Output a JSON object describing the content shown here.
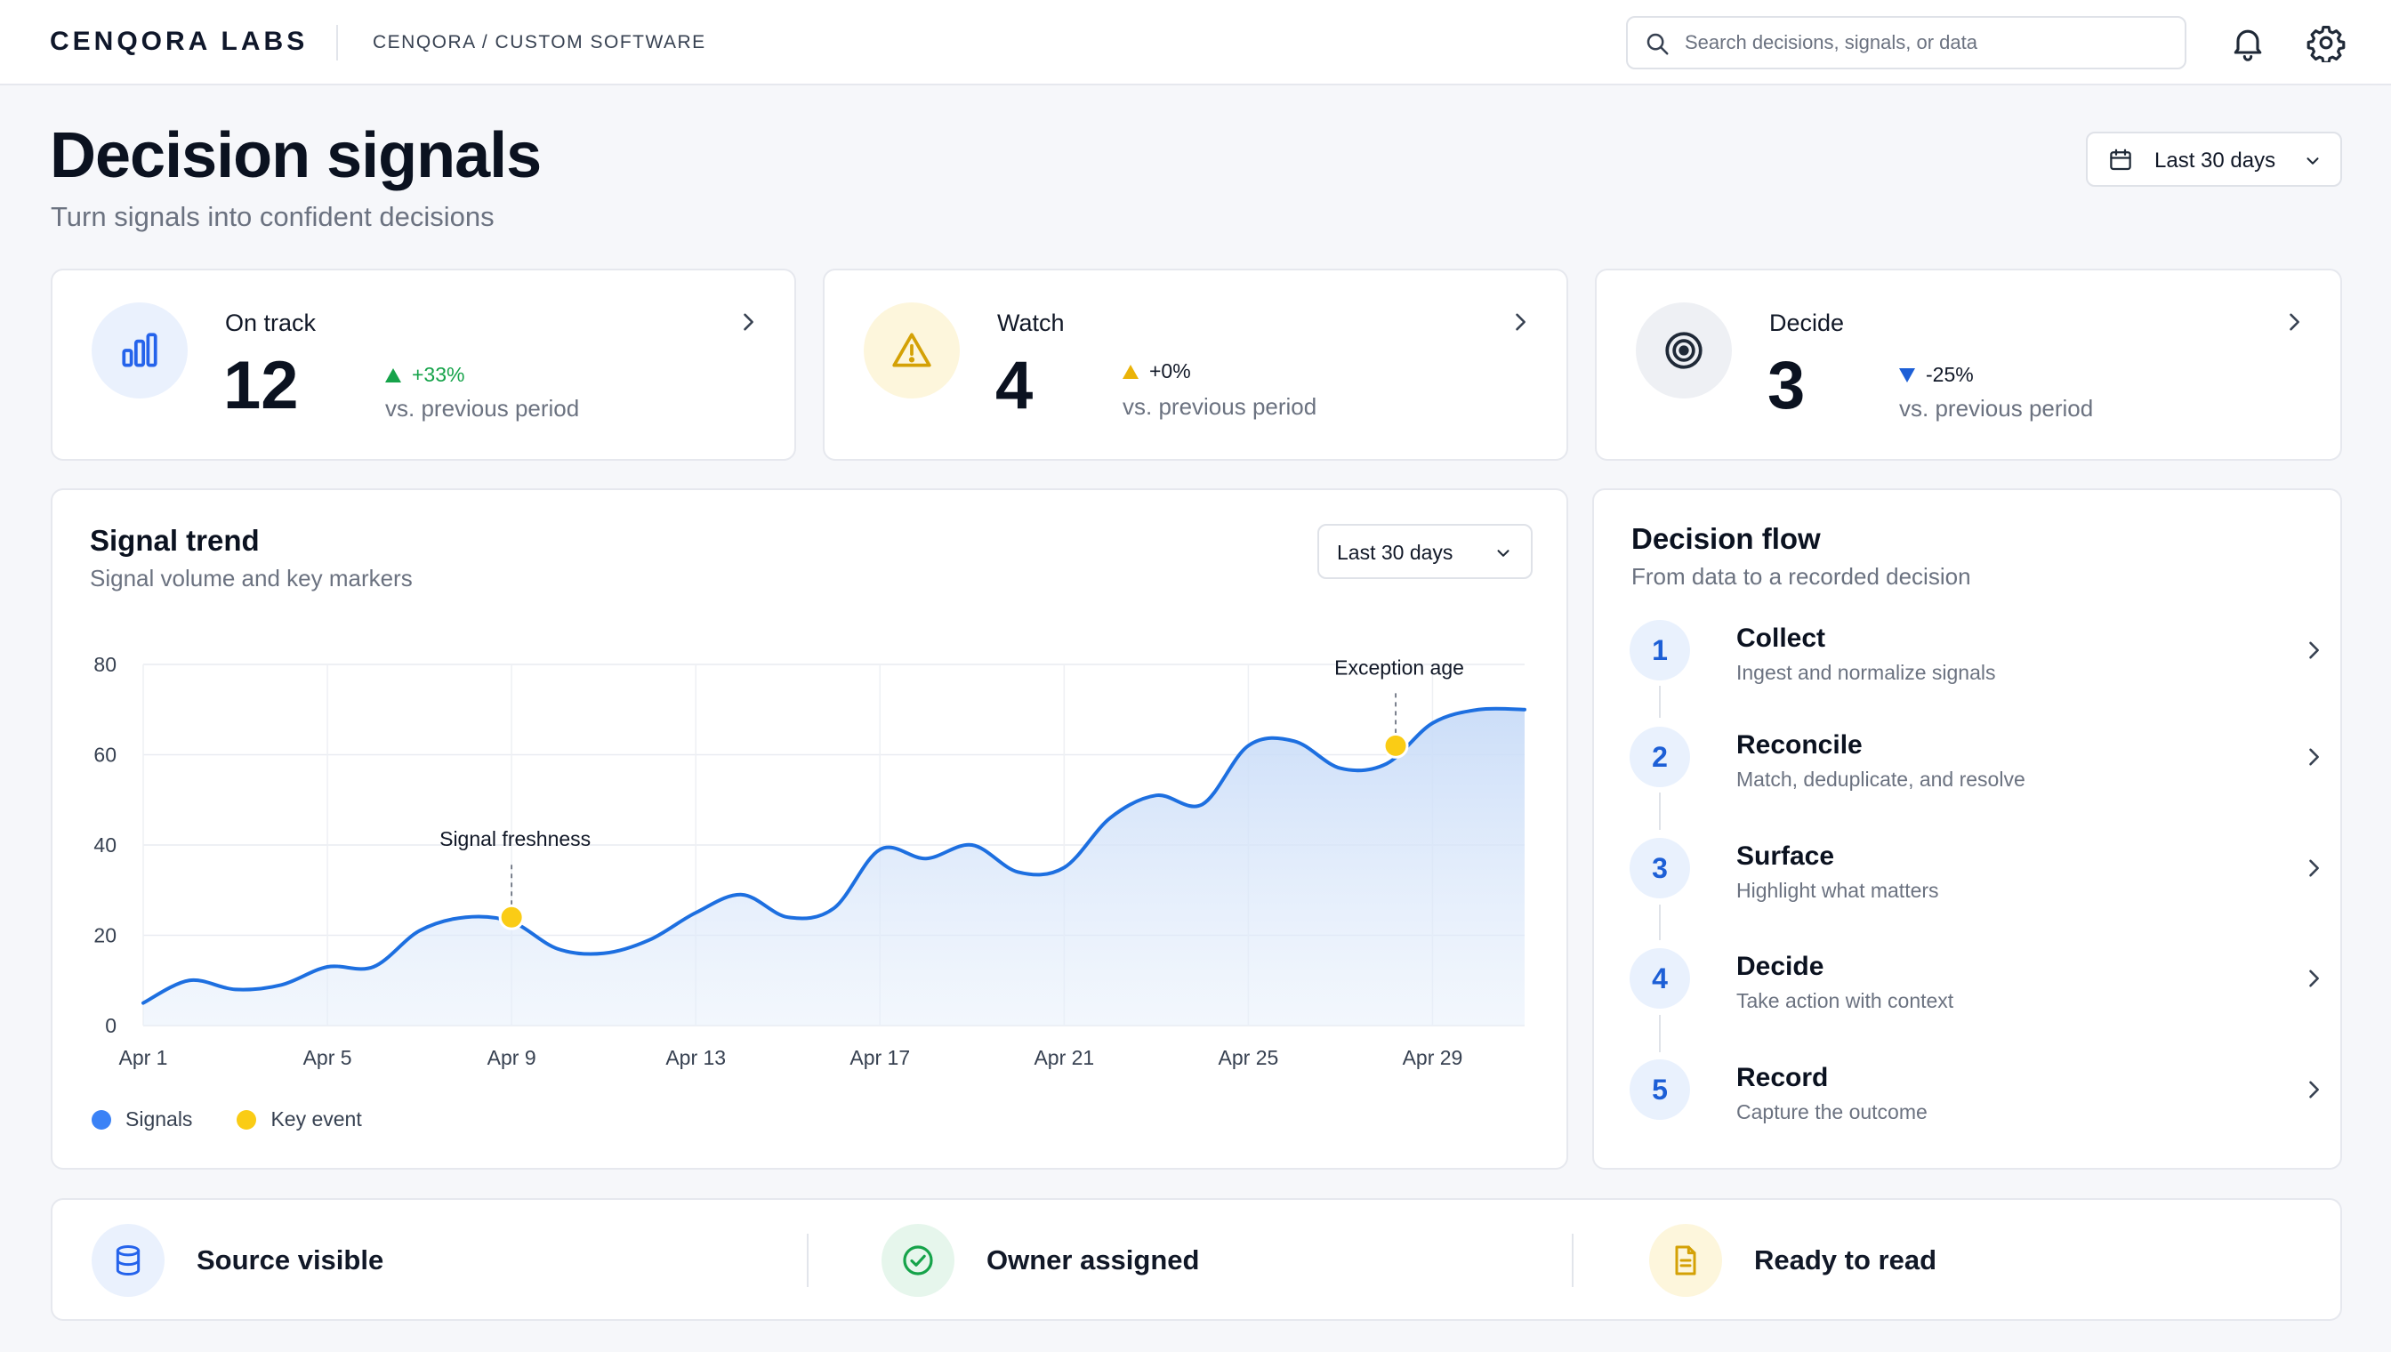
{
  "topbar": {
    "brand": "CENQORA LABS",
    "breadcrumb": "CENQORA / CUSTOM SOFTWARE",
    "search_placeholder": "Search decisions, signals, or data"
  },
  "header": {
    "title": "Decision signals",
    "subtitle": "Turn signals into confident decisions",
    "range_label": "Last 30 days"
  },
  "kpis": [
    {
      "label": "On track",
      "value": "12",
      "change": "+33%",
      "direction": "up",
      "change_color": "#16a34a",
      "compare": "vs. previous period",
      "icon": "bar-chart-icon",
      "accent": "#2563eb"
    },
    {
      "label": "Watch",
      "value": "4",
      "change": "+0%",
      "direction": "flat",
      "change_color": "#eab308",
      "compare": "vs. previous period",
      "icon": "warning-icon",
      "accent": "#eab308"
    },
    {
      "label": "Decide",
      "value": "3",
      "change": "-25%",
      "direction": "down",
      "change_color": "#1d5fd6",
      "compare": "vs. previous period",
      "icon": "target-icon",
      "accent": "#1f2937"
    }
  ],
  "trend": {
    "title": "Signal trend",
    "subtitle": "Signal volume and key markers",
    "range_label": "Last 30 days",
    "legend": [
      {
        "name": "Signals",
        "color": "#3b82f6"
      },
      {
        "name": "Key event",
        "color": "#facc15"
      }
    ]
  },
  "chart_data": {
    "type": "area",
    "title": "Signal trend",
    "subtitle": "Signal volume and key markers",
    "xlabel": "",
    "ylabel": "",
    "ylim": [
      0,
      80
    ],
    "yticks": [
      0,
      20,
      40,
      60,
      80
    ],
    "xticks": [
      "Apr 1",
      "Apr 5",
      "Apr 9",
      "Apr 13",
      "Apr 17",
      "Apr 21",
      "Apr 25",
      "Apr 29"
    ],
    "grid": true,
    "legend_position": "bottom-left",
    "series": [
      {
        "name": "Signals",
        "color": "#1d6fe0",
        "x": [
          1,
          2,
          3,
          4,
          5,
          6,
          7,
          8,
          9,
          10,
          11,
          12,
          13,
          14,
          15,
          16,
          17,
          18,
          19,
          20,
          21,
          22,
          23,
          24,
          25,
          26,
          27,
          28,
          29,
          30,
          31
        ],
        "values": [
          5,
          10,
          8,
          9,
          13,
          13,
          21,
          24,
          23,
          17,
          16,
          19,
          25,
          29,
          24,
          26,
          39,
          37,
          40,
          34,
          35,
          46,
          51,
          49,
          62,
          63,
          57,
          58,
          67,
          70,
          70
        ]
      }
    ],
    "annotations": [
      {
        "label": "Signal freshness",
        "x": 9,
        "y": 24,
        "color": "#facc15"
      },
      {
        "label": "Exception age",
        "x": 28.2,
        "y": 62,
        "color": "#facc15"
      }
    ]
  },
  "flow": {
    "title": "Decision flow",
    "subtitle": "From data to a recorded decision",
    "steps": [
      {
        "num": "1",
        "title": "Collect",
        "desc": "Ingest and normalize signals"
      },
      {
        "num": "2",
        "title": "Reconcile",
        "desc": "Match, deduplicate, and resolve"
      },
      {
        "num": "3",
        "title": "Surface",
        "desc": "Highlight what matters"
      },
      {
        "num": "4",
        "title": "Decide",
        "desc": "Take action with context"
      },
      {
        "num": "5",
        "title": "Record",
        "desc": "Capture the outcome"
      }
    ]
  },
  "statuses": [
    {
      "label": "Source visible",
      "icon": "database-icon",
      "color": "#2563eb"
    },
    {
      "label": "Owner assigned",
      "icon": "check-circle-icon",
      "color": "#16a34a"
    },
    {
      "label": "Ready to read",
      "icon": "document-icon",
      "color": "#eab308"
    }
  ]
}
